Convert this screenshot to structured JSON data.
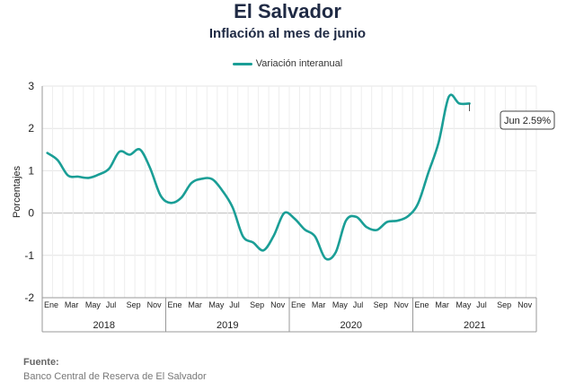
{
  "header": {
    "title": "El Salvador",
    "subtitle": "Inflación al mes de junio"
  },
  "source": {
    "label": "Fuente:",
    "text": "Banco Central de Reserva de El Salvador"
  },
  "chart_data": {
    "type": "line",
    "ylabel": "Porcentajes",
    "ylim": [
      -2,
      3
    ],
    "yticks": [
      -2,
      -1,
      0,
      1,
      2,
      3
    ],
    "grid": true,
    "legend_position": "top",
    "series": [
      {
        "name": "Variación interanual",
        "color": "#1a9e96",
        "values": [
          1.42,
          1.25,
          0.89,
          0.86,
          0.83,
          0.91,
          1.05,
          1.45,
          1.38,
          1.5,
          1.05,
          0.41,
          0.24,
          0.36,
          0.71,
          0.81,
          0.8,
          0.53,
          0.13,
          -0.55,
          -0.7,
          -0.88,
          -0.53,
          0.0,
          -0.13,
          -0.39,
          -0.55,
          -1.07,
          -0.93,
          -0.18,
          -0.09,
          -0.33,
          -0.4,
          -0.21,
          -0.18,
          -0.08,
          0.22,
          0.95,
          1.66,
          2.75,
          2.59,
          2.59
        ]
      }
    ],
    "x": [
      "2018-01",
      "2018-02",
      "2018-03",
      "2018-04",
      "2018-05",
      "2018-06",
      "2018-07",
      "2018-08",
      "2018-09",
      "2018-10",
      "2018-11",
      "2018-12",
      "2019-01",
      "2019-02",
      "2019-03",
      "2019-04",
      "2019-05",
      "2019-06",
      "2019-07",
      "2019-08",
      "2019-09",
      "2019-10",
      "2019-11",
      "2019-12",
      "2020-01",
      "2020-02",
      "2020-03",
      "2020-04",
      "2020-05",
      "2020-06",
      "2020-07",
      "2020-08",
      "2020-09",
      "2020-10",
      "2020-11",
      "2020-12",
      "2021-01",
      "2021-02",
      "2021-03",
      "2021-04",
      "2021-05",
      "2021-06"
    ],
    "month_tick_labels": [
      "Ene",
      "Mar",
      "May",
      "Jul",
      "Sep",
      "Nov"
    ],
    "year_labels": [
      "2018",
      "2019",
      "2020",
      "2021"
    ],
    "annotation": {
      "text": "Jun 2.59%",
      "point_x": "2021-06",
      "point_y": 2.59
    }
  }
}
